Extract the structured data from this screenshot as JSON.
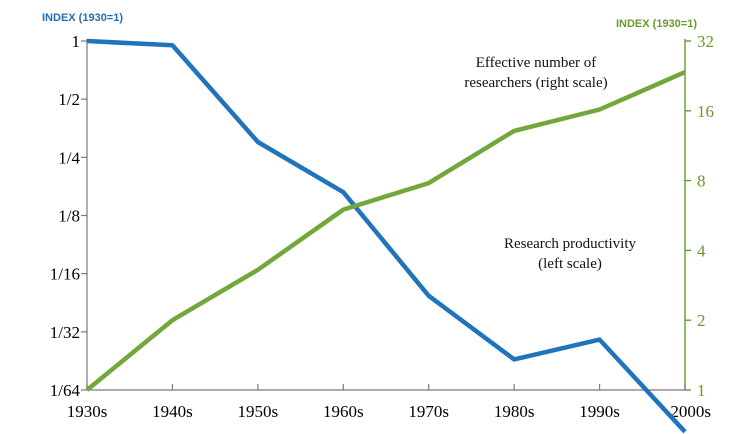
{
  "chart_data": {
    "type": "line",
    "x": [
      "1930s",
      "1940s",
      "1950s",
      "1960s",
      "1970s",
      "1980s",
      "1990s",
      "2000s"
    ],
    "left_axis": {
      "title": "INDEX (1930=1)",
      "scale": "log2",
      "range": [
        0.015625,
        1
      ],
      "ticks": [
        1,
        0.5,
        0.25,
        0.125,
        0.0625,
        0.03125,
        0.015625
      ],
      "tick_labels": [
        "1",
        "1/2",
        "1/4",
        "1/8",
        "1/16",
        "1/32",
        "1/64"
      ],
      "color": "#1f6fb5"
    },
    "right_axis": {
      "title": "INDEX (1930=1)",
      "scale": "log2",
      "range": [
        1,
        32
      ],
      "ticks": [
        32,
        16,
        8,
        4,
        2,
        1
      ],
      "tick_labels": [
        "32",
        "16",
        "8",
        "4",
        "2",
        "1"
      ],
      "color": "#6a9a2e"
    },
    "series": [
      {
        "name": "Research productivity (left scale)",
        "label_lines": [
          "Research productivity",
          "(left scale)"
        ],
        "axis": "left",
        "color": "#1f74bc",
        "values": [
          1,
          0.95,
          0.3,
          0.165,
          0.048,
          0.0225,
          0.0285,
          0.0095
        ]
      },
      {
        "name": "Effective number of researchers (right scale)",
        "label_lines": [
          "Effective number of",
          "researchers (right scale)"
        ],
        "axis": "right",
        "color": "#72a73a",
        "values": [
          1,
          2.0,
          3.3,
          6.0,
          7.8,
          13.1,
          16.2,
          23.5
        ]
      }
    ],
    "grid": false,
    "legend": "inline labels"
  }
}
